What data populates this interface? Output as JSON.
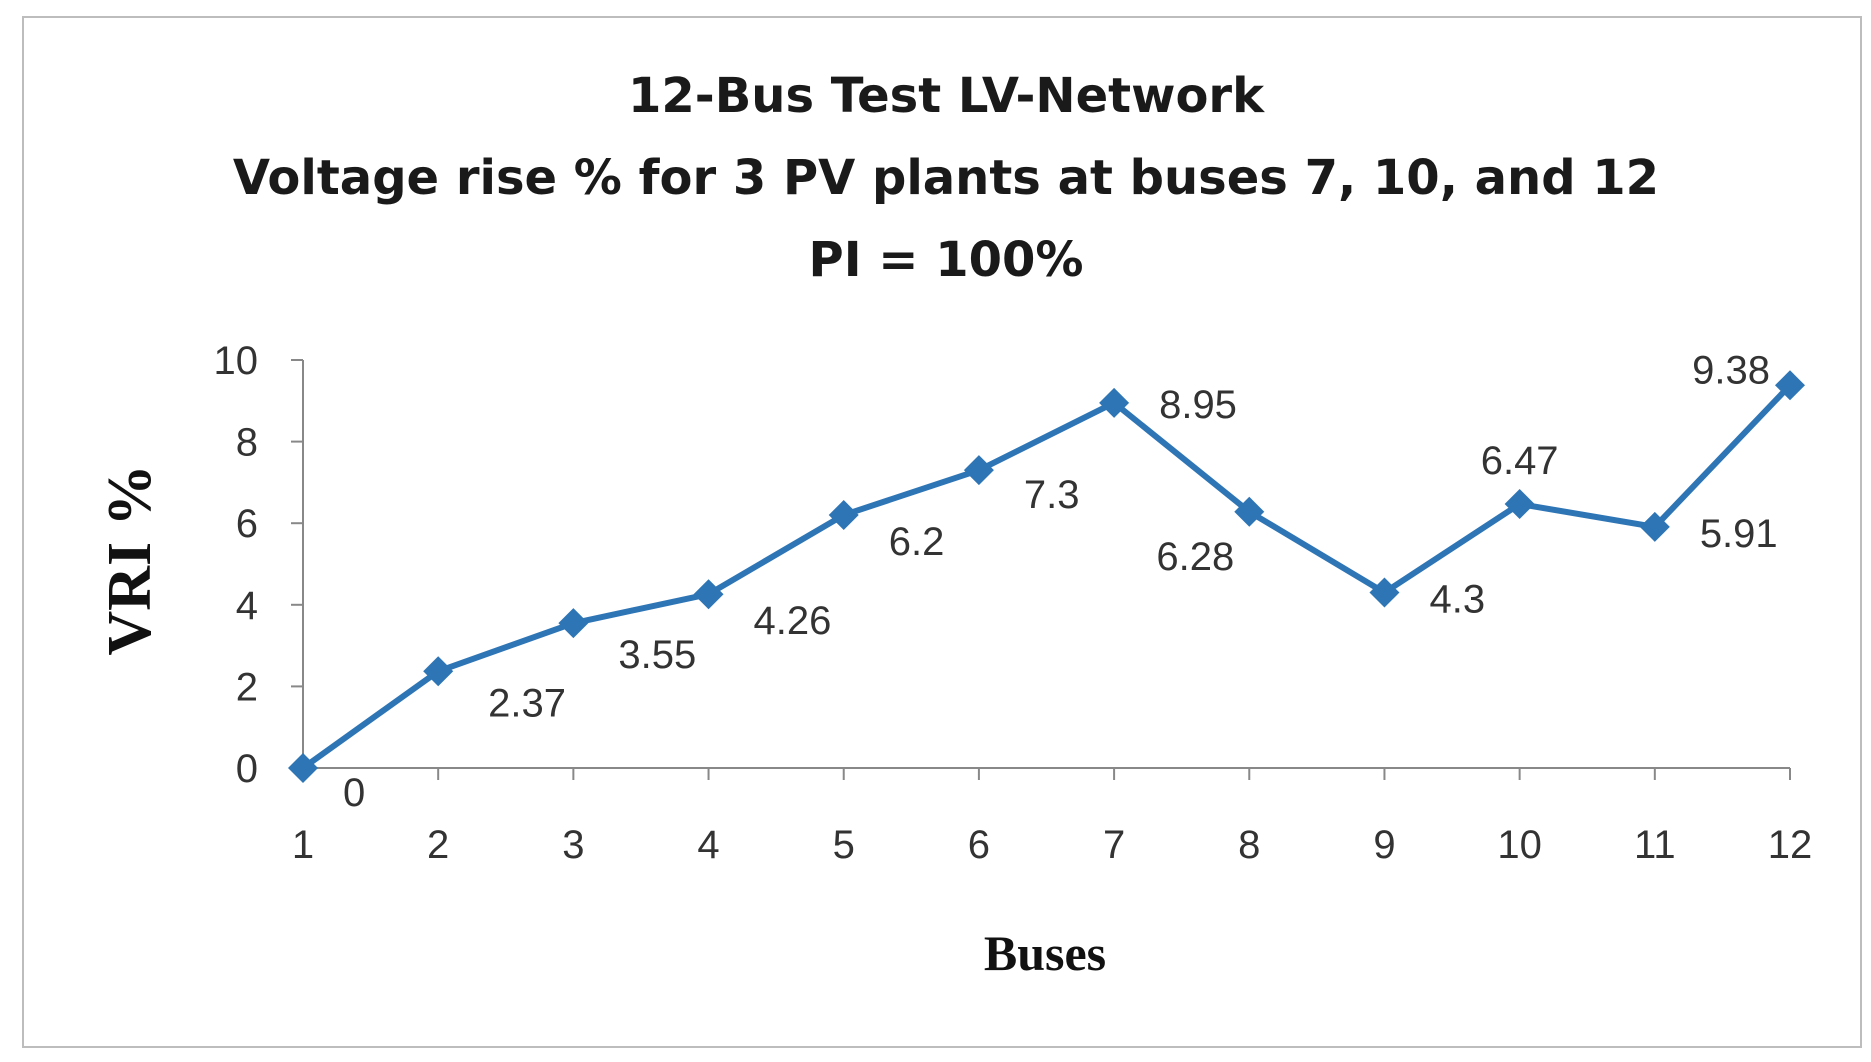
{
  "chart_data": {
    "type": "line",
    "title": [
      "12-Bus Test LV-Network",
      "Voltage rise % for 3 PV plants at buses 7, 10, and  12",
      "PI = 100%"
    ],
    "xlabel": "Buses",
    "ylabel": "VRI %",
    "categories": [
      "1",
      "2",
      "3",
      "4",
      "5",
      "6",
      "7",
      "8",
      "9",
      "10",
      "11",
      "12"
    ],
    "ylim": [
      0,
      10
    ],
    "yticks": [
      "0",
      "2",
      "4",
      "6",
      "8",
      "10"
    ],
    "grid": false,
    "legend": "none",
    "series": [
      {
        "values": [
          0,
          2.37,
          3.55,
          4.26,
          6.2,
          7.3,
          8.95,
          6.28,
          4.3,
          6.47,
          5.91,
          9.38
        ],
        "labels": [
          "0",
          "2.37",
          "3.55",
          "4.26",
          "6.2",
          "7.3",
          "8.95",
          "6.28",
          "4.3",
          "6.47",
          "5.91",
          "9.38"
        ],
        "color": "#2e75b6",
        "marker": "diamond"
      }
    ]
  }
}
